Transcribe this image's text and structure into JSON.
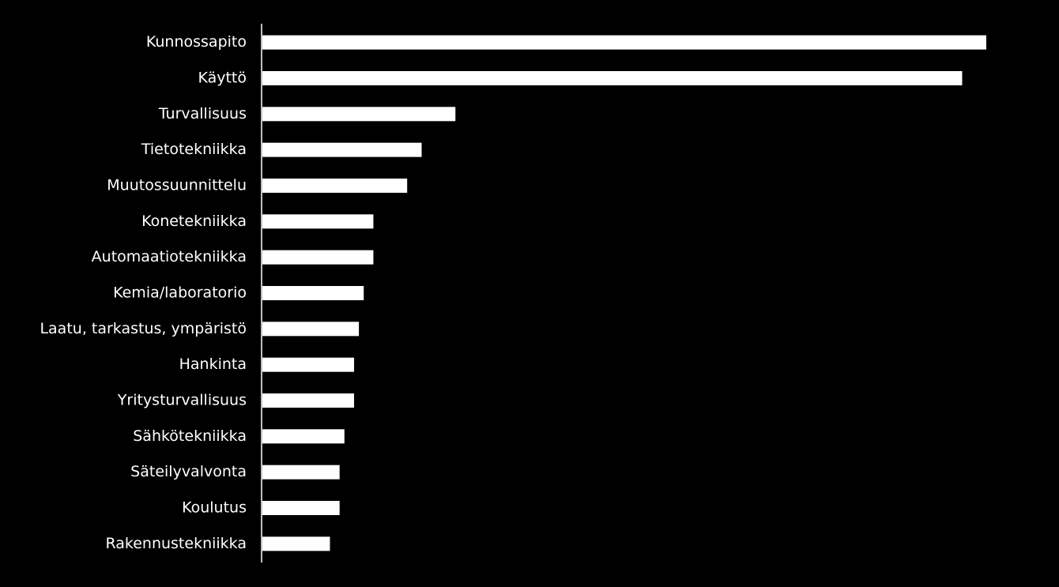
{
  "chart_data": {
    "type": "bar",
    "orientation": "horizontal",
    "categories": [
      "Kunnossapito",
      "Käyttö",
      "Turvallisuus",
      "Tietotekniikka",
      "Muutossuunnittelu",
      "Konetekniikka",
      "Automaatiotekniikka",
      "Kemia/laboratorio",
      "Laatu, tarkastus, ympäristö",
      "Hankinta",
      "Yritysturvallisuus",
      "Sähkötekniikka",
      "Säteilyvalvonta",
      "Koulutus",
      "Rakennustekniikka"
    ],
    "values": [
      150,
      145,
      40,
      33,
      30,
      23,
      23,
      21,
      20,
      19,
      19,
      17,
      16,
      16,
      14
    ],
    "color": "#ffffff",
    "xlim": [
      0,
      150
    ]
  }
}
